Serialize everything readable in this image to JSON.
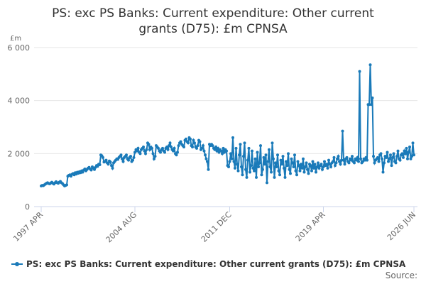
{
  "chart_data": {
    "type": "line",
    "title": "PS: exc PS Banks: Current expenditure: Other current grants (D75): £m CPNSA",
    "y_label": "£m",
    "source": "Source:",
    "categories": [
      "1997 APR",
      null,
      null,
      null,
      null,
      null,
      null,
      null,
      null,
      null,
      null,
      null,
      null,
      null,
      null,
      null,
      null,
      null,
      null,
      null,
      null,
      null,
      null,
      null,
      null,
      null,
      null,
      null,
      null,
      null,
      null,
      null,
      null,
      null,
      null,
      null,
      null,
      null,
      null,
      null,
      null,
      null,
      null,
      null,
      null,
      null,
      null,
      null,
      null,
      null,
      null,
      null,
      null,
      null,
      null,
      null,
      null,
      null,
      null,
      null,
      null,
      null,
      null,
      null,
      null,
      null,
      null,
      null,
      null,
      null,
      null,
      null,
      null,
      null,
      null,
      null,
      null,
      null,
      null,
      null,
      null,
      null,
      null,
      null,
      null,
      null,
      null,
      null,
      "2004 AUG",
      null,
      null,
      null,
      null,
      null,
      null,
      null,
      null,
      null,
      null,
      null,
      null,
      null,
      null,
      null,
      null,
      null,
      null,
      null,
      null,
      null,
      null,
      null,
      null,
      null,
      null,
      null,
      null,
      null,
      null,
      null,
      null,
      null,
      null,
      null,
      null,
      null,
      null,
      null,
      null,
      null,
      null,
      null,
      null,
      null,
      null,
      null,
      null,
      null,
      null,
      null,
      null,
      null,
      null,
      null,
      null,
      null,
      null,
      null,
      null,
      null,
      null,
      null,
      null,
      null,
      null,
      null,
      null,
      null,
      null,
      null,
      null,
      null,
      null,
      null,
      null,
      null,
      null,
      null,
      null,
      null,
      null,
      null,
      null,
      null,
      null,
      null,
      null,
      "2011 DEC",
      null,
      null,
      null,
      null,
      null,
      null,
      null,
      null,
      null,
      null,
      null,
      null,
      null,
      null,
      null,
      null,
      null,
      null,
      null,
      null,
      null,
      null,
      null,
      null,
      null,
      null,
      null,
      null,
      null,
      null,
      null,
      null,
      null,
      null,
      null,
      null,
      null,
      null,
      null,
      null,
      null,
      null,
      null,
      null,
      null,
      null,
      null,
      null,
      null,
      null,
      null,
      null,
      null,
      null,
      null,
      null,
      null,
      null,
      null,
      null,
      null,
      null,
      null,
      null,
      null,
      null,
      null,
      null,
      null,
      null,
      null,
      null,
      null,
      null,
      null,
      null,
      null,
      null,
      null,
      null,
      null,
      null,
      null,
      null,
      null,
      null,
      null,
      "2019 APR",
      null,
      null,
      null,
      null,
      null,
      null,
      null,
      null,
      null,
      null,
      null,
      null,
      null,
      null,
      null,
      null,
      null,
      null,
      null,
      null,
      null,
      null,
      null,
      null,
      null,
      null,
      null,
      null,
      null,
      null,
      null,
      null,
      null,
      null,
      null,
      null,
      null,
      null,
      null,
      null,
      null,
      null,
      null,
      null,
      null,
      null,
      null,
      null,
      null,
      null,
      null,
      null,
      null,
      null,
      null,
      null,
      null,
      null,
      null,
      null,
      null,
      null,
      null,
      null,
      null,
      null,
      null,
      null,
      null,
      null,
      null,
      null,
      null,
      null,
      null,
      null,
      null,
      null,
      null,
      null,
      null,
      null,
      null,
      null,
      "2026 JUN"
    ],
    "series": [
      {
        "name": "PS: exc PS Banks: Current expenditure: Other current grants (D75): £m CPNSA",
        "color": "#1a7ab9",
        "values": [
          780,
          800,
          790,
          820,
          850,
          880,
          900,
          870,
          860,
          890,
          920,
          880,
          850,
          900,
          940,
          900,
          880,
          920,
          950,
          900,
          870,
          820,
          780,
          800,
          820,
          1150,
          1180,
          1200,
          1150,
          1220,
          1250,
          1200,
          1280,
          1230,
          1300,
          1260,
          1320,
          1280,
          1350,
          1300,
          1380,
          1420,
          1350,
          1400,
          1450,
          1480,
          1420,
          1380,
          1500,
          1450,
          1400,
          1480,
          1550,
          1520,
          1600,
          1580,
          1950,
          1920,
          1850,
          1680,
          1700,
          1750,
          1650,
          1600,
          1720,
          1680,
          1550,
          1450,
          1650,
          1700,
          1750,
          1800,
          1780,
          1850,
          1900,
          1950,
          1800,
          1700,
          1850,
          1900,
          1950,
          1800,
          1750,
          1850,
          1900,
          1700,
          1750,
          1850,
          2050,
          2150,
          2100,
          2200,
          2050,
          2000,
          2150,
          2200,
          2250,
          2100,
          2000,
          2150,
          2400,
          2350,
          2150,
          2250,
          2200,
          2000,
          1800,
          1900,
          2300,
          2250,
          2200,
          2100,
          2050,
          2150,
          2200,
          2100,
          2050,
          2200,
          2250,
          2150,
          2300,
          2400,
          2250,
          2150,
          2100,
          2200,
          2000,
          1950,
          2050,
          2300,
          2400,
          2450,
          2350,
          2300,
          2250,
          2500,
          2550,
          2450,
          2400,
          2600,
          2550,
          2300,
          2250,
          2500,
          2400,
          2250,
          2200,
          2300,
          2500,
          2450,
          2150,
          2200,
          2300,
          2100,
          1950,
          1800,
          1700,
          1400,
          2350,
          2300,
          2350,
          2300,
          2200,
          2150,
          2250,
          2100,
          2200,
          2050,
          2150,
          2100,
          2000,
          2200,
          2050,
          2150,
          2100,
          1550,
          1500,
          1700,
          2000,
          1800,
          2600,
          1700,
          1450,
          2200,
          1600,
          1350,
          1950,
          2350,
          1500,
          1200,
          1900,
          2400,
          1400,
          1100,
          1750,
          2200,
          1300,
          1550,
          2100,
          1450,
          1350,
          1800,
          1100,
          2050,
          1500,
          1650,
          2300,
          1200,
          1400,
          1850,
          1600,
          1950,
          900,
          1700,
          2150,
          1500,
          1300,
          2400,
          1800,
          1100,
          1650,
          1500,
          1950,
          1350,
          1200,
          1750,
          1600,
          1900,
          1450,
          1100,
          1700,
          1550,
          2000,
          1400,
          1250,
          1800,
          1650,
          1500,
          1950,
          1350,
          1200,
          1700,
          1550,
          1350,
          1600,
          1450,
          1800,
          1300,
          1500,
          1650,
          1400,
          1250,
          1600,
          1550,
          1350,
          1700,
          1450,
          1600,
          1300,
          1500,
          1650,
          1450,
          1550,
          1600,
          1400,
          1500,
          1700,
          1550,
          1600,
          1450,
          1750,
          1600,
          1500,
          1650,
          1700,
          1850,
          1550,
          1650,
          1800,
          1900,
          1700,
          1600,
          1750,
          2850,
          1750,
          1600,
          1800,
          1850,
          1700,
          1650,
          1800,
          1750,
          1900,
          1700,
          1650,
          1800,
          1750,
          1850,
          1700,
          5100,
          1800,
          1650,
          1700,
          1800,
          1750,
          1850,
          1750,
          3850,
          3850,
          5350,
          3850,
          4100,
          1900,
          1650,
          1750,
          1800,
          1850,
          1700,
          1950,
          2000,
          1800,
          1300,
          1650,
          1900,
          1850,
          2050,
          1700,
          1800,
          1950,
          1550,
          1850,
          2000,
          1700,
          1650,
          1900,
          2100,
          1800,
          1750,
          1950,
          2000,
          1850,
          2100,
          2000,
          2200,
          1800,
          2050,
          2250,
          1800,
          1900,
          2400,
          1950
        ]
      }
    ],
    "ylim": [
      0,
      6000
    ],
    "yticks": [
      {
        "value": 0,
        "label": "0"
      },
      {
        "value": 2000,
        "label": "2 000"
      },
      {
        "value": 4000,
        "label": "4 000"
      },
      {
        "value": 6000,
        "label": "6 000"
      }
    ],
    "grid": true,
    "legend": "bottom"
  }
}
